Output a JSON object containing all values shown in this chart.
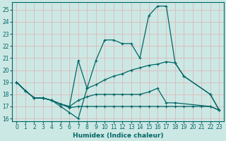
{
  "xlabel": "Humidex (Indice chaleur)",
  "bg_color": "#cce8e4",
  "grid_color": "#ddb8b8",
  "line_color": "#006666",
  "xlim": [
    -0.5,
    23.5
  ],
  "ylim": [
    15.8,
    25.6
  ],
  "xticks": [
    0,
    1,
    2,
    3,
    4,
    5,
    6,
    7,
    8,
    9,
    10,
    11,
    12,
    13,
    14,
    15,
    16,
    17,
    18,
    19,
    20,
    21,
    22,
    23
  ],
  "yticks": [
    16,
    17,
    18,
    19,
    20,
    21,
    22,
    23,
    24,
    25
  ],
  "line1_x": [
    0,
    1,
    2,
    3,
    4,
    5,
    6,
    7,
    8,
    9,
    10,
    11,
    12,
    13,
    14,
    15,
    16,
    17,
    18,
    19,
    22,
    23
  ],
  "line1_y": [
    19.0,
    18.3,
    17.7,
    17.7,
    17.5,
    17.0,
    16.5,
    16.0,
    18.5,
    20.8,
    22.5,
    22.5,
    22.2,
    22.2,
    21.0,
    24.5,
    25.3,
    25.3,
    20.6,
    19.5,
    18.0,
    16.7
  ],
  "line2_x": [
    0,
    1,
    2,
    3,
    4,
    5,
    6,
    7,
    8,
    9,
    10,
    11,
    12,
    13,
    14,
    15,
    16,
    17,
    18,
    19,
    22,
    23
  ],
  "line2_y": [
    19.0,
    18.3,
    17.7,
    17.7,
    17.5,
    17.2,
    17.0,
    20.8,
    18.5,
    18.8,
    19.2,
    19.5,
    19.7,
    20.0,
    20.2,
    20.4,
    20.5,
    20.7,
    20.6,
    19.5,
    18.0,
    16.7
  ],
  "line3_x": [
    0,
    1,
    2,
    3,
    4,
    5,
    6,
    7,
    8,
    9,
    10,
    11,
    12,
    13,
    14,
    15,
    16,
    17,
    18,
    22,
    23
  ],
  "line3_y": [
    19.0,
    18.3,
    17.7,
    17.7,
    17.5,
    17.2,
    17.0,
    17.5,
    17.8,
    18.0,
    18.0,
    18.0,
    18.0,
    18.0,
    18.0,
    18.2,
    18.5,
    17.3,
    17.3,
    17.0,
    16.7
  ],
  "line4_x": [
    0,
    1,
    2,
    3,
    4,
    5,
    6,
    7,
    8,
    9,
    10,
    11,
    12,
    13,
    14,
    15,
    16,
    17,
    18,
    19,
    20,
    21,
    22,
    23
  ],
  "line4_y": [
    19.0,
    18.3,
    17.7,
    17.7,
    17.5,
    17.2,
    16.9,
    17.0,
    17.0,
    17.0,
    17.0,
    17.0,
    17.0,
    17.0,
    17.0,
    17.0,
    17.0,
    17.0,
    17.0,
    17.0,
    17.0,
    17.0,
    17.0,
    16.7
  ]
}
